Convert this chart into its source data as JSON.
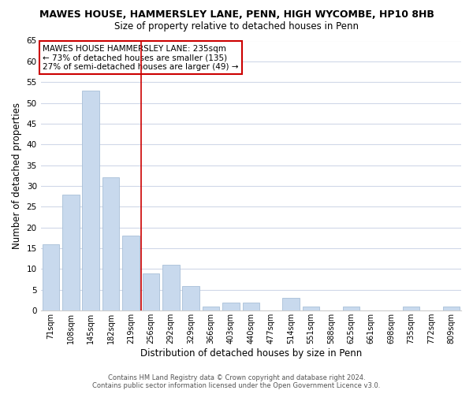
{
  "title": "MAWES HOUSE, HAMMERSLEY LANE, PENN, HIGH WYCOMBE, HP10 8HB",
  "subtitle": "Size of property relative to detached houses in Penn",
  "xlabel": "Distribution of detached houses by size in Penn",
  "ylabel": "Number of detached properties",
  "bar_labels": [
    "71sqm",
    "108sqm",
    "145sqm",
    "182sqm",
    "219sqm",
    "256sqm",
    "292sqm",
    "329sqm",
    "366sqm",
    "403sqm",
    "440sqm",
    "477sqm",
    "514sqm",
    "551sqm",
    "588sqm",
    "625sqm",
    "661sqm",
    "698sqm",
    "735sqm",
    "772sqm",
    "809sqm"
  ],
  "bar_values": [
    16,
    28,
    53,
    32,
    18,
    9,
    11,
    6,
    1,
    2,
    2,
    0,
    3,
    1,
    0,
    1,
    0,
    0,
    1,
    0,
    1
  ],
  "bar_color": "#c8d9ed",
  "bar_edge_color": "#a8bfd8",
  "ylim": [
    0,
    65
  ],
  "yticks": [
    0,
    5,
    10,
    15,
    20,
    25,
    30,
    35,
    40,
    45,
    50,
    55,
    60,
    65
  ],
  "vline_x_index": 4.5,
  "vline_color": "#cc0000",
  "annotation_title": "MAWES HOUSE HAMMERSLEY LANE: 235sqm",
  "annotation_line1": "← 73% of detached houses are smaller (135)",
  "annotation_line2": "27% of semi-detached houses are larger (49) →",
  "footer1": "Contains HM Land Registry data © Crown copyright and database right 2024.",
  "footer2": "Contains public sector information licensed under the Open Government Licence v3.0.",
  "background_color": "#ffffff",
  "grid_color": "#d0d8e8"
}
